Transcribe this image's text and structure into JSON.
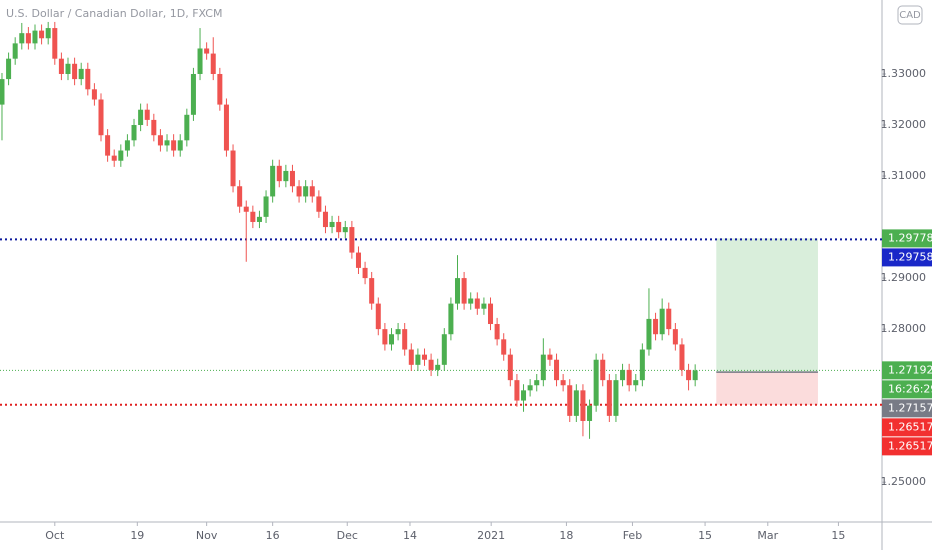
{
  "chart_data": {
    "type": "candlestick",
    "title": "U.S. Dollar / Canadian Dollar, 1D, FXCM",
    "currency": "CAD",
    "up_color": "#4caf50",
    "down_color": "#ef5350",
    "x": [
      0,
      1,
      2,
      3,
      4,
      5,
      6,
      7,
      8,
      9,
      10,
      11,
      12,
      13,
      14,
      15,
      16,
      17,
      18,
      19,
      20,
      21,
      22,
      23,
      24,
      25,
      26,
      27,
      28,
      29,
      30,
      31,
      32,
      33,
      34,
      35,
      36,
      37,
      38,
      39,
      40,
      41,
      42,
      43,
      44,
      45,
      46,
      47,
      48,
      49,
      50,
      51,
      52,
      53,
      54,
      55,
      56,
      57,
      58,
      59,
      60,
      61,
      62,
      63,
      64,
      65,
      66,
      67,
      68,
      69,
      70,
      71,
      72,
      73,
      74,
      75,
      76,
      77,
      78,
      79,
      80,
      81,
      82,
      83,
      84,
      85,
      86,
      87,
      88,
      89,
      90,
      91,
      92,
      93,
      94,
      95,
      96,
      97,
      98,
      99,
      100,
      101,
      102,
      103,
      104,
      105
    ],
    "open": [
      1.324,
      1.329,
      1.333,
      1.336,
      1.338,
      1.336,
      1.3385,
      1.337,
      1.339,
      1.333,
      1.33,
      1.332,
      1.329,
      1.331,
      1.327,
      1.325,
      1.318,
      1.314,
      1.313,
      1.315,
      1.317,
      1.32,
      1.323,
      1.321,
      1.318,
      1.316,
      1.317,
      1.315,
      1.317,
      1.322,
      1.33,
      1.335,
      1.334,
      1.33,
      1.324,
      1.315,
      1.308,
      1.304,
      1.303,
      1.301,
      1.302,
      1.306,
      1.312,
      1.309,
      1.311,
      1.308,
      1.306,
      1.308,
      1.306,
      1.303,
      1.3,
      1.301,
      1.299,
      1.3,
      1.295,
      1.292,
      1.29,
      1.285,
      1.28,
      1.277,
      1.279,
      1.28,
      1.276,
      1.273,
      1.275,
      1.274,
      1.272,
      1.273,
      1.279,
      1.285,
      1.29,
      1.285,
      1.286,
      1.284,
      1.285,
      1.281,
      1.278,
      1.275,
      1.27,
      1.266,
      1.268,
      1.269,
      1.27,
      1.275,
      1.274,
      1.27,
      1.269,
      1.263,
      1.268,
      1.262,
      1.265,
      1.274,
      1.27,
      1.263,
      1.27,
      1.272,
      1.269,
      1.27,
      1.276,
      1.282,
      1.279,
      1.284,
      1.28,
      1.277,
      1.272,
      1.27
    ],
    "high": [
      1.3302,
      1.3342,
      1.3372,
      1.34,
      1.3392,
      1.3397,
      1.3397,
      1.3402,
      1.3402,
      1.3342,
      1.3332,
      1.3332,
      1.3322,
      1.3322,
      1.3282,
      1.3262,
      1.3192,
      1.3152,
      1.3162,
      1.3182,
      1.3212,
      1.3242,
      1.3242,
      1.3222,
      1.3192,
      1.3182,
      1.3182,
      1.3182,
      1.3232,
      1.3312,
      1.339,
      1.3362,
      1.3372,
      1.3312,
      1.3252,
      1.3162,
      1.3092,
      1.3052,
      1.3042,
      1.3032,
      1.3072,
      1.3132,
      1.3132,
      1.3122,
      1.3122,
      1.3092,
      1.3092,
      1.3092,
      1.3072,
      1.3042,
      1.3022,
      1.3022,
      1.3012,
      1.3012,
      1.2962,
      1.2932,
      1.2912,
      1.2862,
      1.2812,
      1.2802,
      1.2812,
      1.2812,
      1.2772,
      1.2762,
      1.2762,
      1.2752,
      1.2742,
      1.2802,
      1.2862,
      1.2945,
      1.2912,
      1.2872,
      1.2872,
      1.2862,
      1.2862,
      1.2822,
      1.2792,
      1.2762,
      1.2712,
      1.2692,
      1.2702,
      1.2712,
      1.2782,
      1.2762,
      1.2752,
      1.2712,
      1.2702,
      1.2692,
      1.2692,
      1.2662,
      1.2752,
      1.2752,
      1.2712,
      1.2712,
      1.2732,
      1.2732,
      1.2712,
      1.2772,
      1.288,
      1.2832,
      1.286,
      1.2852,
      1.2812,
      1.2782,
      1.2732,
      1.2731
    ],
    "low": [
      1.317,
      1.3278,
      1.3318,
      1.3348,
      1.3348,
      1.3348,
      1.3358,
      1.3358,
      1.3318,
      1.3288,
      1.3288,
      1.3278,
      1.3278,
      1.3258,
      1.3238,
      1.3168,
      1.3128,
      1.3118,
      1.3118,
      1.3138,
      1.3158,
      1.3188,
      1.3198,
      1.3168,
      1.3148,
      1.3148,
      1.3138,
      1.3138,
      1.3158,
      1.3208,
      1.3288,
      1.3328,
      1.3288,
      1.3228,
      1.3138,
      1.3068,
      1.3028,
      1.2932,
      1.2998,
      1.2998,
      1.3008,
      1.3048,
      1.3078,
      1.3078,
      1.3068,
      1.3048,
      1.3048,
      1.3048,
      1.3018,
      1.2988,
      1.2988,
      1.2978,
      1.2978,
      1.2938,
      1.2908,
      1.2888,
      1.2838,
      1.2788,
      1.2758,
      1.2758,
      1.2778,
      1.2748,
      1.2718,
      1.2718,
      1.2728,
      1.2708,
      1.2708,
      1.2718,
      1.2778,
      1.2838,
      1.2838,
      1.2838,
      1.2828,
      1.2828,
      1.2798,
      1.2768,
      1.2738,
      1.2688,
      1.2648,
      1.2638,
      1.2668,
      1.2678,
      1.2688,
      1.2728,
      1.2688,
      1.2678,
      1.2618,
      1.2618,
      1.259,
      1.2585,
      1.2638,
      1.2688,
      1.2618,
      1.2618,
      1.2688,
      1.2678,
      1.2678,
      1.2688,
      1.2748,
      1.2778,
      1.2778,
      1.2788,
      1.2758,
      1.2708,
      1.268,
      1.2688
    ],
    "close": [
      1.329,
      1.333,
      1.336,
      1.338,
      1.336,
      1.3385,
      1.337,
      1.339,
      1.333,
      1.33,
      1.332,
      1.329,
      1.331,
      1.327,
      1.325,
      1.318,
      1.314,
      1.313,
      1.315,
      1.317,
      1.32,
      1.323,
      1.321,
      1.318,
      1.316,
      1.317,
      1.315,
      1.317,
      1.322,
      1.33,
      1.335,
      1.334,
      1.33,
      1.324,
      1.315,
      1.308,
      1.304,
      1.303,
      1.301,
      1.302,
      1.306,
      1.312,
      1.309,
      1.311,
      1.308,
      1.306,
      1.308,
      1.306,
      1.303,
      1.3,
      1.301,
      1.299,
      1.3,
      1.295,
      1.292,
      1.29,
      1.285,
      1.28,
      1.277,
      1.279,
      1.28,
      1.276,
      1.273,
      1.275,
      1.274,
      1.272,
      1.273,
      1.279,
      1.285,
      1.29,
      1.285,
      1.286,
      1.284,
      1.285,
      1.281,
      1.278,
      1.275,
      1.27,
      1.266,
      1.268,
      1.269,
      1.27,
      1.275,
      1.274,
      1.27,
      1.269,
      1.263,
      1.268,
      1.262,
      1.265,
      1.274,
      1.27,
      1.263,
      1.27,
      1.272,
      1.269,
      1.27,
      1.276,
      1.282,
      1.279,
      1.284,
      1.28,
      1.277,
      1.272,
      1.27,
      1.2719
    ],
    "xlim": [
      -0.3,
      133.3
    ],
    "ylim": [
      1.2422,
      1.3445
    ],
    "xticks": [
      {
        "value": 8,
        "label": "Oct"
      },
      {
        "value": 20.5,
        "label": "19"
      },
      {
        "value": 31,
        "label": "Nov"
      },
      {
        "value": 41,
        "label": "16"
      },
      {
        "value": 52.3,
        "label": "Dec"
      },
      {
        "value": 61.8,
        "label": "14"
      },
      {
        "value": 74.1,
        "label": "2021"
      },
      {
        "value": 85.5,
        "label": "18"
      },
      {
        "value": 95.5,
        "label": "Feb"
      },
      {
        "value": 106.5,
        "label": "15"
      },
      {
        "value": 116,
        "label": "Mar"
      },
      {
        "value": 126.7,
        "label": "15"
      }
    ],
    "yticks": [
      {
        "value": 1.33,
        "label": "1.33000"
      },
      {
        "value": 1.32,
        "label": "1.32000"
      },
      {
        "value": 1.31,
        "label": "1.31000"
      },
      {
        "value": 1.29,
        "label": "1.29000"
      },
      {
        "value": 1.28,
        "label": "1.28000"
      },
      {
        "value": 1.25,
        "label": "1.25000"
      }
    ],
    "lines": [
      {
        "value": 1.29758,
        "color": "#0d1a9c",
        "style": "dotted"
      },
      {
        "value": 1.26517,
        "color": "#e02020",
        "style": "dotted"
      },
      {
        "value": 1.27192,
        "color": "#4caf50",
        "style": "thin"
      }
    ],
    "position": {
      "x": [
        108.2,
        123.6
      ],
      "entry": 1.27157,
      "target": 1.29778,
      "stop": 1.26517,
      "profit_color": "#d9eedb",
      "loss_color": "#fbdcdc"
    },
    "price_labels": [
      {
        "value": 1.29778,
        "color": "#4caf50"
      },
      {
        "value": 1.29758,
        "color": "#1a28c8"
      },
      {
        "value": 1.27192,
        "color": "#4caf50"
      },
      {
        "label": "16:26:29",
        "color": "#4caf50"
      },
      {
        "value": 1.27157,
        "color": "#787b86"
      },
      {
        "value": 1.26517,
        "color": "#f23030"
      },
      {
        "value": 1.26517,
        "color": "#f23030"
      }
    ]
  }
}
